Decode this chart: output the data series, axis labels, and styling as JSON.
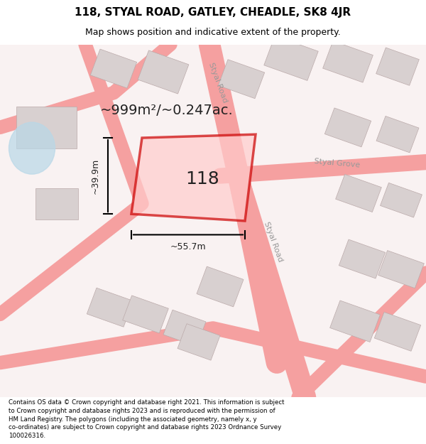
{
  "title": "118, STYAL ROAD, GATLEY, CHEADLE, SK8 4JR",
  "subtitle": "Map shows position and indicative extent of the property.",
  "footer_line1": "Contains OS data © Crown copyright and database right 2021. This information is subject",
  "footer_line2": "to Crown copyright and database rights 2023 and is reproduced with the permission of",
  "footer_line3": "HM Land Registry. The polygons (including the associated geometry, namely x, y",
  "footer_line4": "co-ordinates) are subject to Crown copyright and database rights 2023 Ordnance Survey",
  "footer_line5": "100026316.",
  "bg_color": "#f7f0f0",
  "map_bg_color": "#f9f2f2",
  "building_color": "#d8d0d0",
  "road_line_color": "#f5a0a0",
  "highlight_color": "#cc0000",
  "highlight_fill": "#f5c0c0",
  "water_color": "#b8d8e8",
  "area_text": "~999m²/~0.247ac.",
  "number_text": "118",
  "width_text": "~55.7m",
  "height_text": "~39.9m",
  "road_label1": "Styal Road",
  "road_label2": "Styal Road",
  "road_label3": "Styal Grove"
}
